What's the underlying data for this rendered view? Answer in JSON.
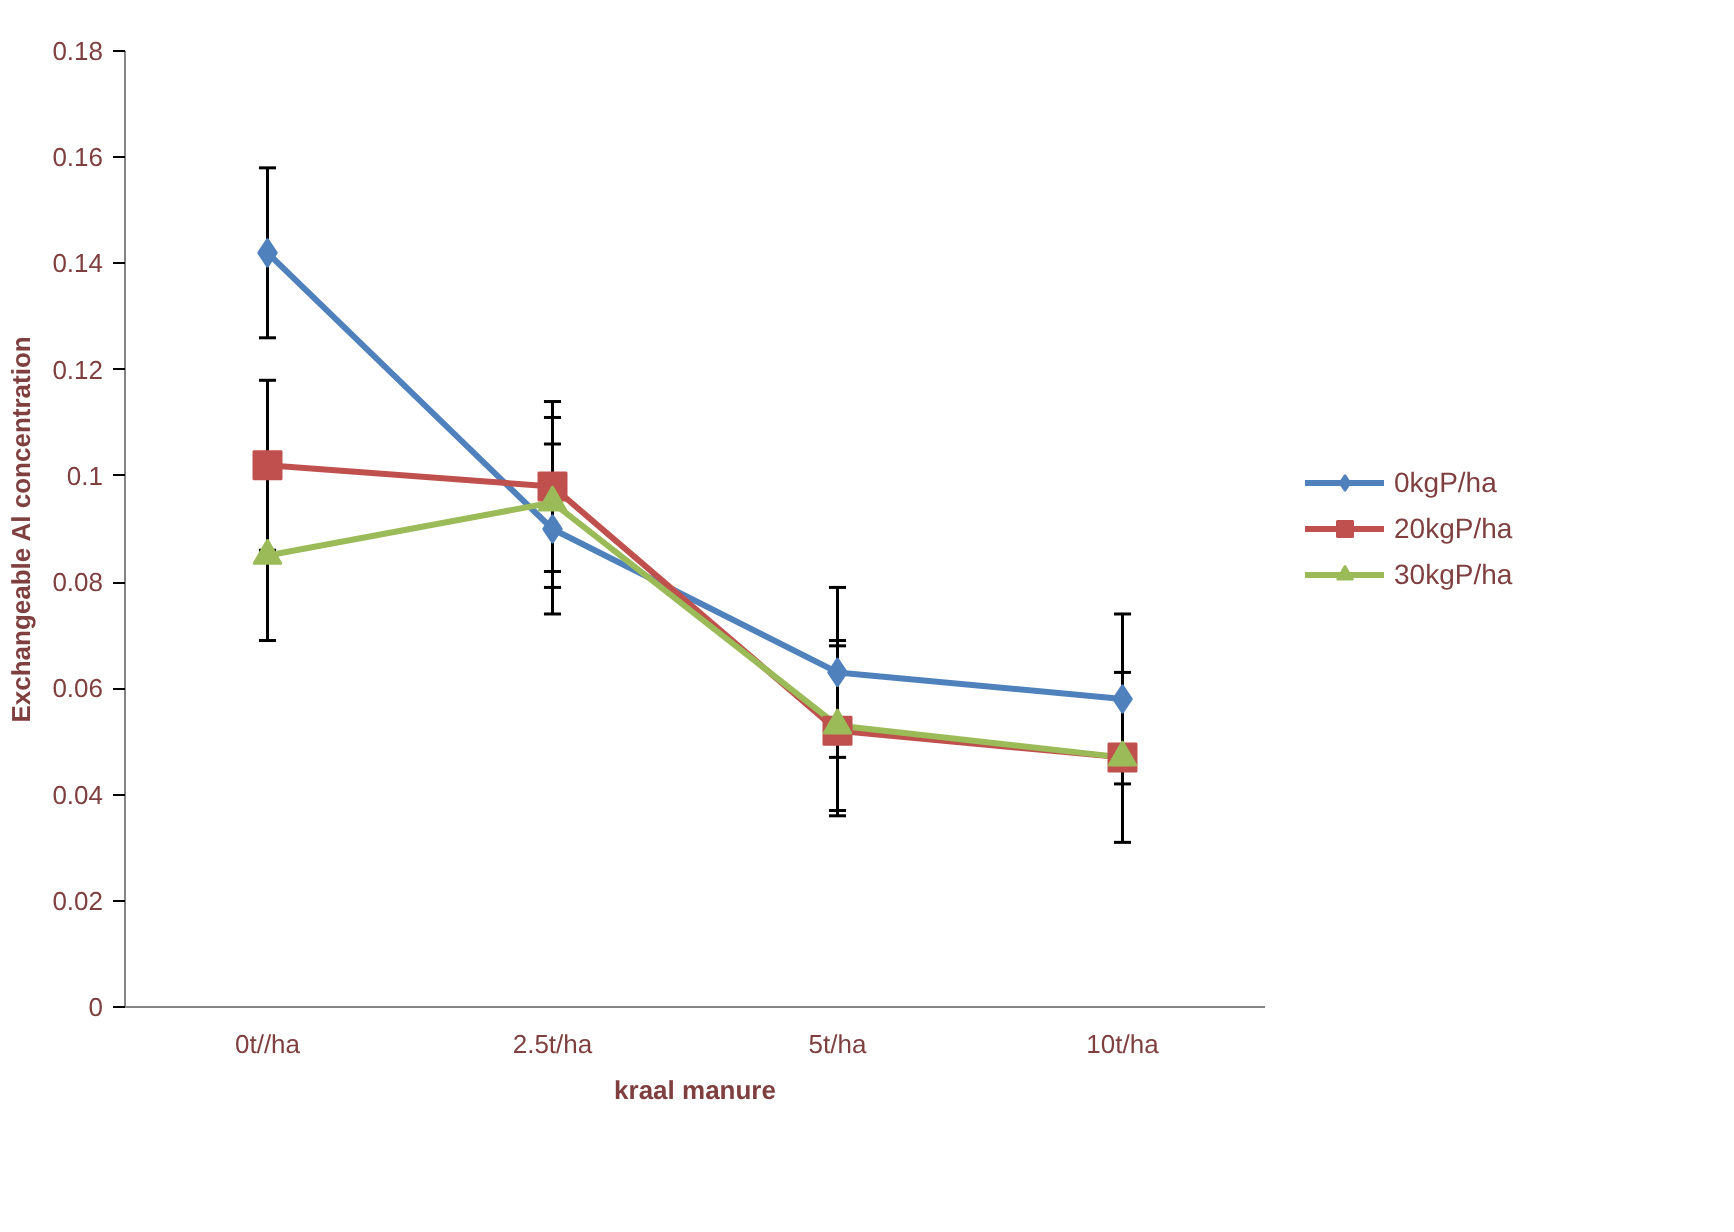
{
  "chart_data": {
    "type": "line",
    "xlabel": "kraal manure",
    "ylabel": "Exchangeable Al concentration",
    "categories": [
      "0t//ha",
      "2.5t/ha",
      "5t/ha",
      "10t/ha"
    ],
    "series": [
      {
        "name": "0kgP/ha",
        "color": "#4f81bd",
        "marker": "diamond",
        "values": [
          0.142,
          0.09,
          0.063,
          0.058
        ],
        "errors": [
          0.016,
          0.016,
          0.016,
          0.016
        ]
      },
      {
        "name": "20kgP/ha",
        "color": "#c0504d",
        "marker": "square",
        "values": [
          0.102,
          0.098,
          0.052,
          0.047
        ],
        "errors": [
          0.016,
          0.016,
          0.016,
          0.016
        ]
      },
      {
        "name": "30kgP/ha",
        "color": "#9bbb59",
        "marker": "triangle",
        "values": [
          0.085,
          0.095,
          0.053,
          0.047
        ],
        "errors": [
          0.016,
          0.016,
          0.016,
          0.016
        ]
      }
    ],
    "ylim": [
      0,
      0.18
    ],
    "yticks": [
      0,
      0.02,
      0.04,
      0.06,
      0.08,
      0.1,
      0.12,
      0.14,
      0.16,
      0.18
    ],
    "grid": false,
    "legend": "right"
  }
}
